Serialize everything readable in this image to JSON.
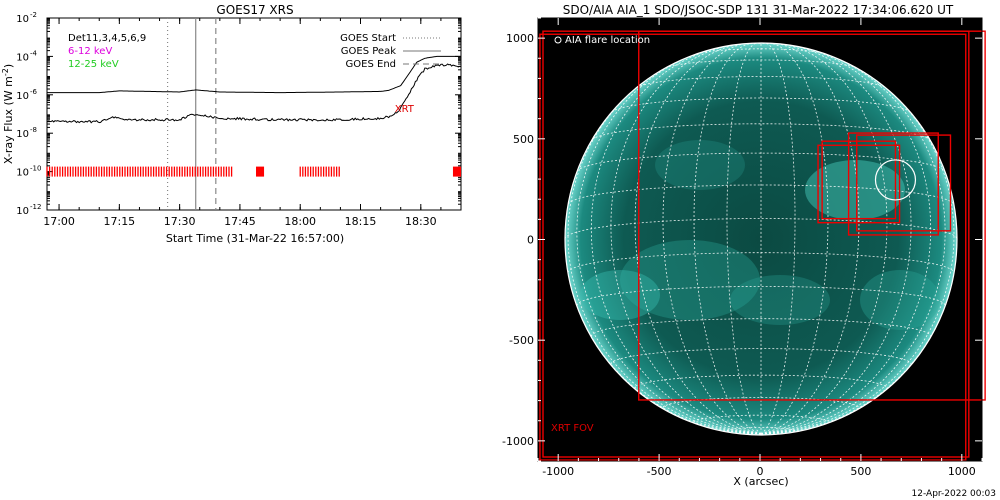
{
  "chart_data": [
    {
      "type": "line",
      "title": "GOES17 XRS",
      "xlabel": "Start Time (31-Mar-22 16:57:00)",
      "ylabel": "X-ray Flux (W m",
      "ylabel_sup": "-2",
      "ylabel_close": ")",
      "y_scale": "log",
      "ylim": [
        1e-12,
        0.01
      ],
      "xlim": [
        "16:57",
        "18:40"
      ],
      "x_ticks": [
        "17:00",
        "17:15",
        "17:30",
        "17:45",
        "18:00",
        "18:15",
        "18:30"
      ],
      "y_ticks": [
        {
          "base": "10",
          "exp": "-2",
          "value": 0.01
        },
        {
          "base": "10",
          "exp": "-4",
          "value": 0.0001
        },
        {
          "base": "10",
          "exp": "-6",
          "value": 1e-06
        },
        {
          "base": "10",
          "exp": "-8",
          "value": 1e-08
        },
        {
          "base": "10",
          "exp": "-10",
          "value": 1e-10
        },
        {
          "base": "10",
          "exp": "-12",
          "value": 1e-12
        }
      ],
      "info_lines": [
        {
          "text": "Det11,3,4,5,6,9",
          "color": "#000000"
        },
        {
          "text": "6-12 keV",
          "color": "#dd00dd"
        },
        {
          "text": "12-25 keV",
          "color": "#22cc22"
        }
      ],
      "legend": [
        {
          "label": "GOES Start",
          "style": "dotted"
        },
        {
          "label": "GOES Peak",
          "style": "solid"
        },
        {
          "label": "GOES End",
          "style": "dashed"
        }
      ],
      "legend_position": "top-right",
      "markers": {
        "start": "17:27",
        "peak": "17:34",
        "end": "17:39"
      },
      "annotation": {
        "text": "XRT",
        "color": "#dd0000",
        "x": "18:27",
        "y": 1.3e-07
      },
      "series": [
        {
          "color": "#000000",
          "x": [
            "16:57",
            "17:10",
            "17:15",
            "17:30",
            "17:33",
            "17:34",
            "17:40",
            "17:55",
            "18:10",
            "18:20",
            "18:22",
            "18:25",
            "18:27",
            "18:29",
            "18:31",
            "18:34",
            "18:38",
            "18:40"
          ],
          "y": [
            1.3e-06,
            1.3e-06,
            1.6e-06,
            1.4e-06,
            1.7e-06,
            1.8e-06,
            1.4e-06,
            1.3e-06,
            1.4e-06,
            1.5e-06,
            1.7e-06,
            3e-06,
            1.2e-05,
            5e-05,
            8e-05,
            0.0001,
            0.0001,
            0.0001
          ]
        },
        {
          "color": "#000000",
          "x": [
            "16:57",
            "17:10",
            "17:14",
            "17:16",
            "17:30",
            "17:33",
            "17:34",
            "17:36",
            "17:40",
            "17:55",
            "18:10",
            "18:20",
            "18:23",
            "18:25",
            "18:27",
            "18:29",
            "18:31",
            "18:34",
            "18:38",
            "18:40"
          ],
          "y": [
            4e-08,
            4e-08,
            7e-08,
            5e-08,
            5e-08,
            9e-08,
            1e-07,
            8e-08,
            6e-08,
            5e-08,
            5e-08,
            6e-08,
            8e-08,
            2e-07,
            1e-06,
            6e-06,
            2.2e-05,
            3.5e-05,
            3.5e-05,
            3e-05
          ]
        }
      ],
      "coverage_flux": 1e-10,
      "coverage": [
        [
          "16:57",
          "17:43"
        ],
        [
          "17:49",
          "17:51"
        ],
        [
          "18:00",
          "18:10"
        ],
        [
          "18:38",
          "18:40"
        ]
      ]
    },
    {
      "type": "image",
      "title": "SDO/AIA AIA_1 SDO/JSOC-SDP 131 31-Mar-2022 17:34:06.620 UT",
      "xlabel": "X (arcsec)",
      "xlim": [
        -1100,
        1100
      ],
      "ylim": [
        -1100,
        1100
      ],
      "x_ticks": [
        "-1000",
        "-500",
        "0",
        "500",
        "1000"
      ],
      "y_ticks": [
        "1000",
        "500",
        "0",
        "-500",
        "-1000"
      ],
      "legend_text": "AIA flare location",
      "fov_label": "XRT FOV",
      "footer": "12-Apr-2022 00:03",
      "solar_radius_arcsec": 962,
      "flare_location": {
        "x": 660,
        "y": 290
      },
      "fov_boxes": [
        [
          -1070,
          -1070,
          1020,
          1020
        ],
        [
          -1085,
          -1085,
          1005,
          1005
        ],
        [
          -600,
          -790,
          1100,
          1020
        ],
        [
          280,
          460,
          680,
          80
        ],
        [
          300,
          480,
          660,
          100
        ],
        [
          430,
          520,
          870,
          20
        ],
        [
          470,
          510,
          930,
          40
        ]
      ]
    }
  ]
}
